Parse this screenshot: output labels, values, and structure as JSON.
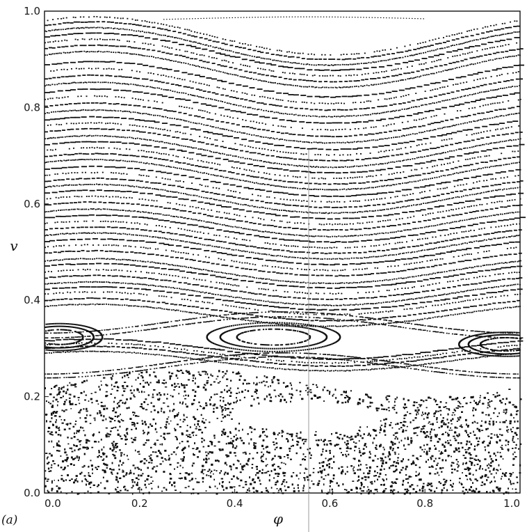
{
  "chart_data": {
    "type": "scatter",
    "panel_label": "(a)",
    "xlabel": "φ",
    "ylabel": "v",
    "xlim": [
      0.0,
      1.0
    ],
    "ylim": [
      0.0,
      1.0
    ],
    "x_ticks": [
      "0.0",
      "0.2",
      "0.4",
      "0.6",
      "0.8",
      "1.0"
    ],
    "y_ticks": [
      "0.0",
      "0.2",
      "0.4",
      "0.6",
      "0.8",
      "1.0"
    ],
    "grid": false,
    "legend": "none",
    "marker_color": "#111111",
    "curves": {
      "description_free_params": true,
      "base_levels": [
        0.275,
        0.285,
        0.292,
        0.3,
        0.37,
        0.382,
        0.395,
        0.405,
        0.415,
        0.428,
        0.44,
        0.452,
        0.462,
        0.478,
        0.49,
        0.502,
        0.514,
        0.526,
        0.538,
        0.55,
        0.562,
        0.576,
        0.588,
        0.6,
        0.612,
        0.624,
        0.636,
        0.648,
        0.662,
        0.674,
        0.686,
        0.698,
        0.71,
        0.724,
        0.736,
        0.748,
        0.762,
        0.776,
        0.79,
        0.804,
        0.818,
        0.832,
        0.846,
        0.86,
        0.88,
        0.893,
        0.905,
        0.917,
        0.928,
        0.94,
        0.95
      ],
      "amplitude_top": 0.04,
      "phase_min_at": 0.6
    },
    "islands": [
      {
        "cx": 0.03,
        "cy": 0.325,
        "rx": 0.09,
        "ry": 0.028
      },
      {
        "cx": 0.48,
        "cy": 0.325,
        "rx": 0.14,
        "ry": 0.03
      },
      {
        "cx": 0.97,
        "cy": 0.31,
        "rx": 0.1,
        "ry": 0.025
      }
    ],
    "chaotic_sea": {
      "v_min": 0.0,
      "v_max": 0.26,
      "n_points": 6000,
      "empty_region": {
        "cx": 0.55,
        "cy": 0.16,
        "rx": 0.16,
        "ry": 0.03
      }
    }
  }
}
